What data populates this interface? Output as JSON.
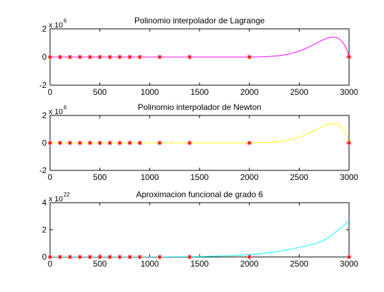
{
  "figure": {
    "background": "#ffffff",
    "axis_color": "#000000",
    "marker_color": "#ff0000",
    "marker_symbol": "*"
  },
  "chart_data": [
    {
      "type": "line",
      "title": "Polinomio interpolador de Lagrange",
      "xlabel": "",
      "ylabel": "",
      "xlim": [
        0,
        3000
      ],
      "ylim": [
        -2,
        2
      ],
      "y_exponent_label": "x 10",
      "y_exponent": "6",
      "xticks": [
        0,
        500,
        1000,
        1500,
        2000,
        2500,
        3000
      ],
      "xtick_labels": [
        "0",
        "500",
        "1000",
        "1500",
        "2000",
        "2500",
        "3000"
      ],
      "yticks": [
        -2,
        0,
        2
      ],
      "ytick_labels": [
        "-2",
        "0",
        "2"
      ],
      "grid": false,
      "series": [
        {
          "style": "line",
          "color": "#ff00ff",
          "x": [
            0,
            500,
            1000,
            1500,
            2000,
            2100,
            2200,
            2300,
            2400,
            2500,
            2600,
            2700,
            2750,
            2800,
            2850,
            2900,
            2950,
            2980,
            3000
          ],
          "y": [
            0,
            0,
            0,
            0,
            0,
            0.01,
            0.04,
            0.1,
            0.22,
            0.42,
            0.72,
            1.08,
            1.25,
            1.38,
            1.42,
            1.3,
            0.9,
            0.5,
            0
          ]
        },
        {
          "style": "markers",
          "color": "#ff0000",
          "x": [
            0,
            100,
            200,
            300,
            400,
            500,
            600,
            700,
            800,
            900,
            1100,
            1400,
            2000,
            3000
          ],
          "y": [
            0,
            0,
            0,
            0,
            0,
            0,
            0,
            0,
            0,
            0,
            0,
            0,
            0,
            0
          ]
        }
      ]
    },
    {
      "type": "line",
      "title": "Polinomio interpolador de Newton",
      "xlabel": "",
      "ylabel": "",
      "xlim": [
        0,
        3000
      ],
      "ylim": [
        -2,
        2
      ],
      "y_exponent_label": "x 10",
      "y_exponent": "6",
      "xticks": [
        0,
        500,
        1000,
        1500,
        2000,
        2500,
        3000
      ],
      "xtick_labels": [
        "0",
        "500",
        "1000",
        "1500",
        "2000",
        "2500",
        "3000"
      ],
      "yticks": [
        -2,
        0,
        2
      ],
      "ytick_labels": [
        "-2",
        "0",
        "2"
      ],
      "grid": false,
      "series": [
        {
          "style": "line",
          "color": "#ffff00",
          "x": [
            0,
            500,
            1000,
            1500,
            2000,
            2100,
            2200,
            2300,
            2400,
            2500,
            2600,
            2700,
            2750,
            2800,
            2850,
            2900,
            2950,
            2980,
            3000
          ],
          "y": [
            0,
            0,
            0,
            0,
            0,
            0.01,
            0.04,
            0.1,
            0.22,
            0.42,
            0.72,
            1.08,
            1.25,
            1.38,
            1.42,
            1.3,
            0.9,
            0.5,
            0
          ]
        },
        {
          "style": "markers",
          "color": "#ff0000",
          "x": [
            0,
            100,
            200,
            300,
            400,
            500,
            600,
            700,
            800,
            900,
            1100,
            1400,
            2000,
            3000
          ],
          "y": [
            0,
            0,
            0,
            0,
            0,
            0,
            0,
            0,
            0,
            0,
            0,
            0,
            0,
            0
          ]
        }
      ]
    },
    {
      "type": "line",
      "title": "Aproximacion funcional de grado 6",
      "xlabel": "",
      "ylabel": "",
      "xlim": [
        0,
        3000
      ],
      "ylim": [
        0,
        4
      ],
      "y_exponent_label": "x 10",
      "y_exponent": "22",
      "xticks": [
        0,
        500,
        1000,
        1500,
        2000,
        2500,
        3000
      ],
      "xtick_labels": [
        "0",
        "500",
        "1000",
        "1500",
        "2000",
        "2500",
        "3000"
      ],
      "yticks": [
        0,
        2,
        4
      ],
      "ytick_labels": [
        "0",
        "2",
        "4"
      ],
      "grid": false,
      "series": [
        {
          "style": "line",
          "color": "#00ffff",
          "x": [
            0,
            500,
            1000,
            1250,
            1500,
            1750,
            2000,
            2250,
            2500,
            2750,
            3000
          ],
          "y": [
            0,
            0,
            0.003,
            0.01,
            0.03,
            0.08,
            0.18,
            0.37,
            0.7,
            1.25,
            2.65
          ]
        },
        {
          "style": "markers",
          "color": "#ff0000",
          "x": [
            0,
            100,
            200,
            300,
            400,
            500,
            600,
            700,
            800,
            900,
            1100,
            1400,
            2000,
            3000
          ],
          "y": [
            0,
            0,
            0,
            0,
            0,
            0,
            0,
            0,
            0,
            0,
            0,
            0,
            0,
            0
          ]
        }
      ]
    }
  ]
}
